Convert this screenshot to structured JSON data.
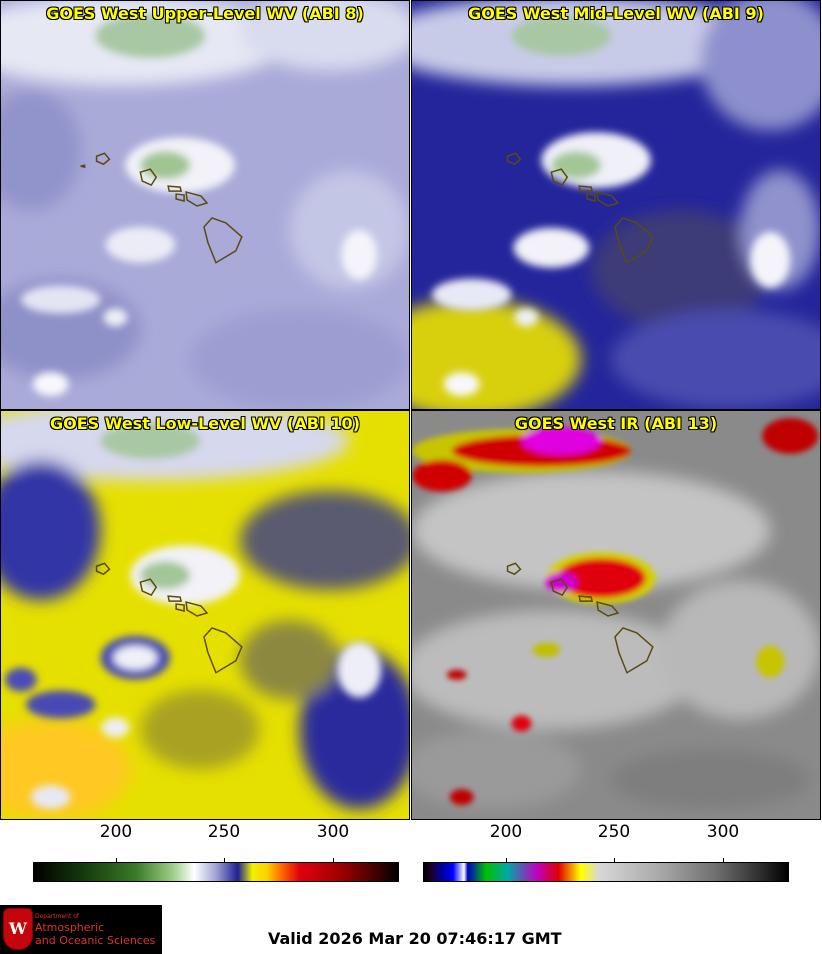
{
  "panels": [
    {
      "title": "GOES West Upper-Level WV (ABI 8)"
    },
    {
      "title": "GOES West Mid-Level WV (ABI 9)"
    },
    {
      "title": "GOES West Low-Level WV (ABI 10)"
    },
    {
      "title": "GOES West IR (ABI 13)"
    }
  ],
  "colorbars": [
    {
      "ticks": [
        "200",
        "250",
        "300"
      ],
      "min": 163,
      "max": 333
    },
    {
      "ticks": [
        "200",
        "250",
        "300"
      ],
      "min": 163,
      "max": 333
    }
  ],
  "logo": {
    "line1": "Department of",
    "line2": "Atmospheric",
    "line3": "and Oceanic Sciences",
    "crest": "W"
  },
  "valid_time": "Valid 2026 Mar 20 07:46:17 GMT"
}
